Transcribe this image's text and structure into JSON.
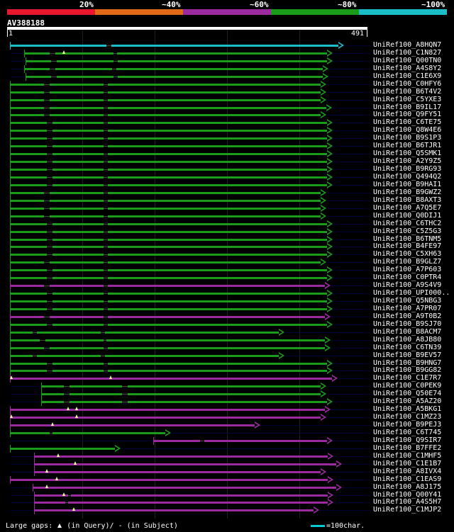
{
  "legend": [
    {
      "label": "20%",
      "color": "#e8172e"
    },
    {
      "label": "~40%",
      "color": "#e06a17"
    },
    {
      "label": "~60%",
      "color": "#9b2aa1"
    },
    {
      "label": "~80%",
      "color": "#1a9b1a"
    },
    {
      "label": "~100%",
      "color": "#1bbdc8"
    }
  ],
  "query": {
    "name": "AV388188",
    "start_label": "1",
    "end_label": "491"
  },
  "hits": [
    {
      "name": "UniRef100_A8HQN7",
      "color": "#1bbdc8"
    },
    {
      "name": "UniRef100_C1N827",
      "color": "#1a9b1a"
    },
    {
      "name": "UniRef100_Q00TN0",
      "color": "#1a9b1a"
    },
    {
      "name": "UniRef100_A4S8Y2",
      "color": "#1a9b1a"
    },
    {
      "name": "UniRef100_C1E6X9",
      "color": "#1a9b1a"
    },
    {
      "name": "UniRef100_C0HFY6",
      "color": "#1a9b1a"
    },
    {
      "name": "UniRef100_B6T4V2",
      "color": "#1a9b1a"
    },
    {
      "name": "UniRef100_C5YXE3",
      "color": "#1a9b1a"
    },
    {
      "name": "UniRef100_B9IL17",
      "color": "#1a9b1a"
    },
    {
      "name": "UniRef100_Q9FY51",
      "color": "#1a9b1a"
    },
    {
      "name": "UniRef100_C6TE75",
      "color": "#1a9b1a"
    },
    {
      "name": "UniRef100_Q8W4E6",
      "color": "#1a9b1a"
    },
    {
      "name": "UniRef100_B9S1P3",
      "color": "#1a9b1a"
    },
    {
      "name": "UniRef100_B6TJR1",
      "color": "#1a9b1a"
    },
    {
      "name": "UniRef100_Q5SMK1",
      "color": "#1a9b1a"
    },
    {
      "name": "UniRef100_A2Y9Z5",
      "color": "#1a9b1a"
    },
    {
      "name": "UniRef100_B9RG93",
      "color": "#1a9b1a"
    },
    {
      "name": "UniRef100_Q494Q2",
      "color": "#1a9b1a"
    },
    {
      "name": "UniRef100_B9HAI1",
      "color": "#1a9b1a"
    },
    {
      "name": "UniRef100_B9GWZ2",
      "color": "#1a9b1a"
    },
    {
      "name": "UniRef100_B8AXT3",
      "color": "#1a9b1a"
    },
    {
      "name": "UniRef100_A7Q5E7",
      "color": "#1a9b1a"
    },
    {
      "name": "UniRef100_Q0DIJ1",
      "color": "#1a9b1a"
    },
    {
      "name": "UniRef100_C6THC2",
      "color": "#1a9b1a"
    },
    {
      "name": "UniRef100_C5Z5G3",
      "color": "#1a9b1a"
    },
    {
      "name": "UniRef100_B6TNM5",
      "color": "#1a9b1a"
    },
    {
      "name": "UniRef100_B4FE97",
      "color": "#1a9b1a"
    },
    {
      "name": "UniRef100_C5XH63",
      "color": "#1a9b1a"
    },
    {
      "name": "UniRef100_B9GLZ7",
      "color": "#1a9b1a"
    },
    {
      "name": "UniRef100_A7P603",
      "color": "#1a9b1a"
    },
    {
      "name": "UniRef100_C0PTR4",
      "color": "#1a9b1a"
    },
    {
      "name": "UniRef100_A9S4V9",
      "color": "#9b2aa1"
    },
    {
      "name": "UniRef100_UPI000..",
      "color": "#1a9b1a"
    },
    {
      "name": "UniRef100_Q5NBG3",
      "color": "#1a9b1a"
    },
    {
      "name": "UniRef100_A7PR07",
      "color": "#1a9b1a"
    },
    {
      "name": "UniRef100_A9T0B2",
      "color": "#9b2aa1"
    },
    {
      "name": "UniRef100_B9SJ70",
      "color": "#1a9b1a"
    },
    {
      "name": "UniRef100_B8ACM7",
      "color": "#1a9b1a"
    },
    {
      "name": "UniRef100_A8JB80",
      "color": "#1a9b1a"
    },
    {
      "name": "UniRef100_C6TN39",
      "color": "#1a9b1a"
    },
    {
      "name": "UniRef100_B9EV57",
      "color": "#1a9b1a"
    },
    {
      "name": "UniRef100_B9HNG7",
      "color": "#1a9b1a"
    },
    {
      "name": "UniRef100_B9GG82",
      "color": "#1a9b1a"
    },
    {
      "name": "UniRef100_C1E7R7",
      "color": "#9b2aa1"
    },
    {
      "name": "UniRef100_C0PEK9",
      "color": "#1a9b1a"
    },
    {
      "name": "UniRef100_Q50E74",
      "color": "#1a9b1a"
    },
    {
      "name": "UniRef100_A5AZ20",
      "color": "#1a9b1a"
    },
    {
      "name": "UniRef100_A5BKG1",
      "color": "#9b2aa1"
    },
    {
      "name": "UniRef100_C1MZ23",
      "color": "#9b2aa1"
    },
    {
      "name": "UniRef100_B9PEJ3",
      "color": "#9b2aa1"
    },
    {
      "name": "UniRef100_C6T745",
      "color": "#1a9b1a"
    },
    {
      "name": "UniRef100_Q9SIR7",
      "color": "#9b2aa1"
    },
    {
      "name": "UniRef100_B7FFE2",
      "color": "#1a9b1a"
    },
    {
      "name": "UniRef100_C1MHF5",
      "color": "#9b2aa1"
    },
    {
      "name": "UniRef100_C1E1B7",
      "color": "#9b2aa1"
    },
    {
      "name": "UniRef100_A8IVX4",
      "color": "#9b2aa1"
    },
    {
      "name": "UniRef100_C1EAS9",
      "color": "#9b2aa1"
    },
    {
      "name": "UniRef100_A8J175",
      "color": "#9b2aa1"
    },
    {
      "name": "UniRef100_Q00Y41",
      "color": "#9b2aa1"
    },
    {
      "name": "UniRef100_A4S5H7",
      "color": "#9b2aa1"
    },
    {
      "name": "UniRef100_C1MJP2",
      "color": "#9b2aa1"
    }
  ],
  "footer": {
    "gaps_label": "Large gaps:",
    "query_label": "(in Query)/",
    "subject_label": "(in Subject)",
    "scale_label": "=100char."
  }
}
